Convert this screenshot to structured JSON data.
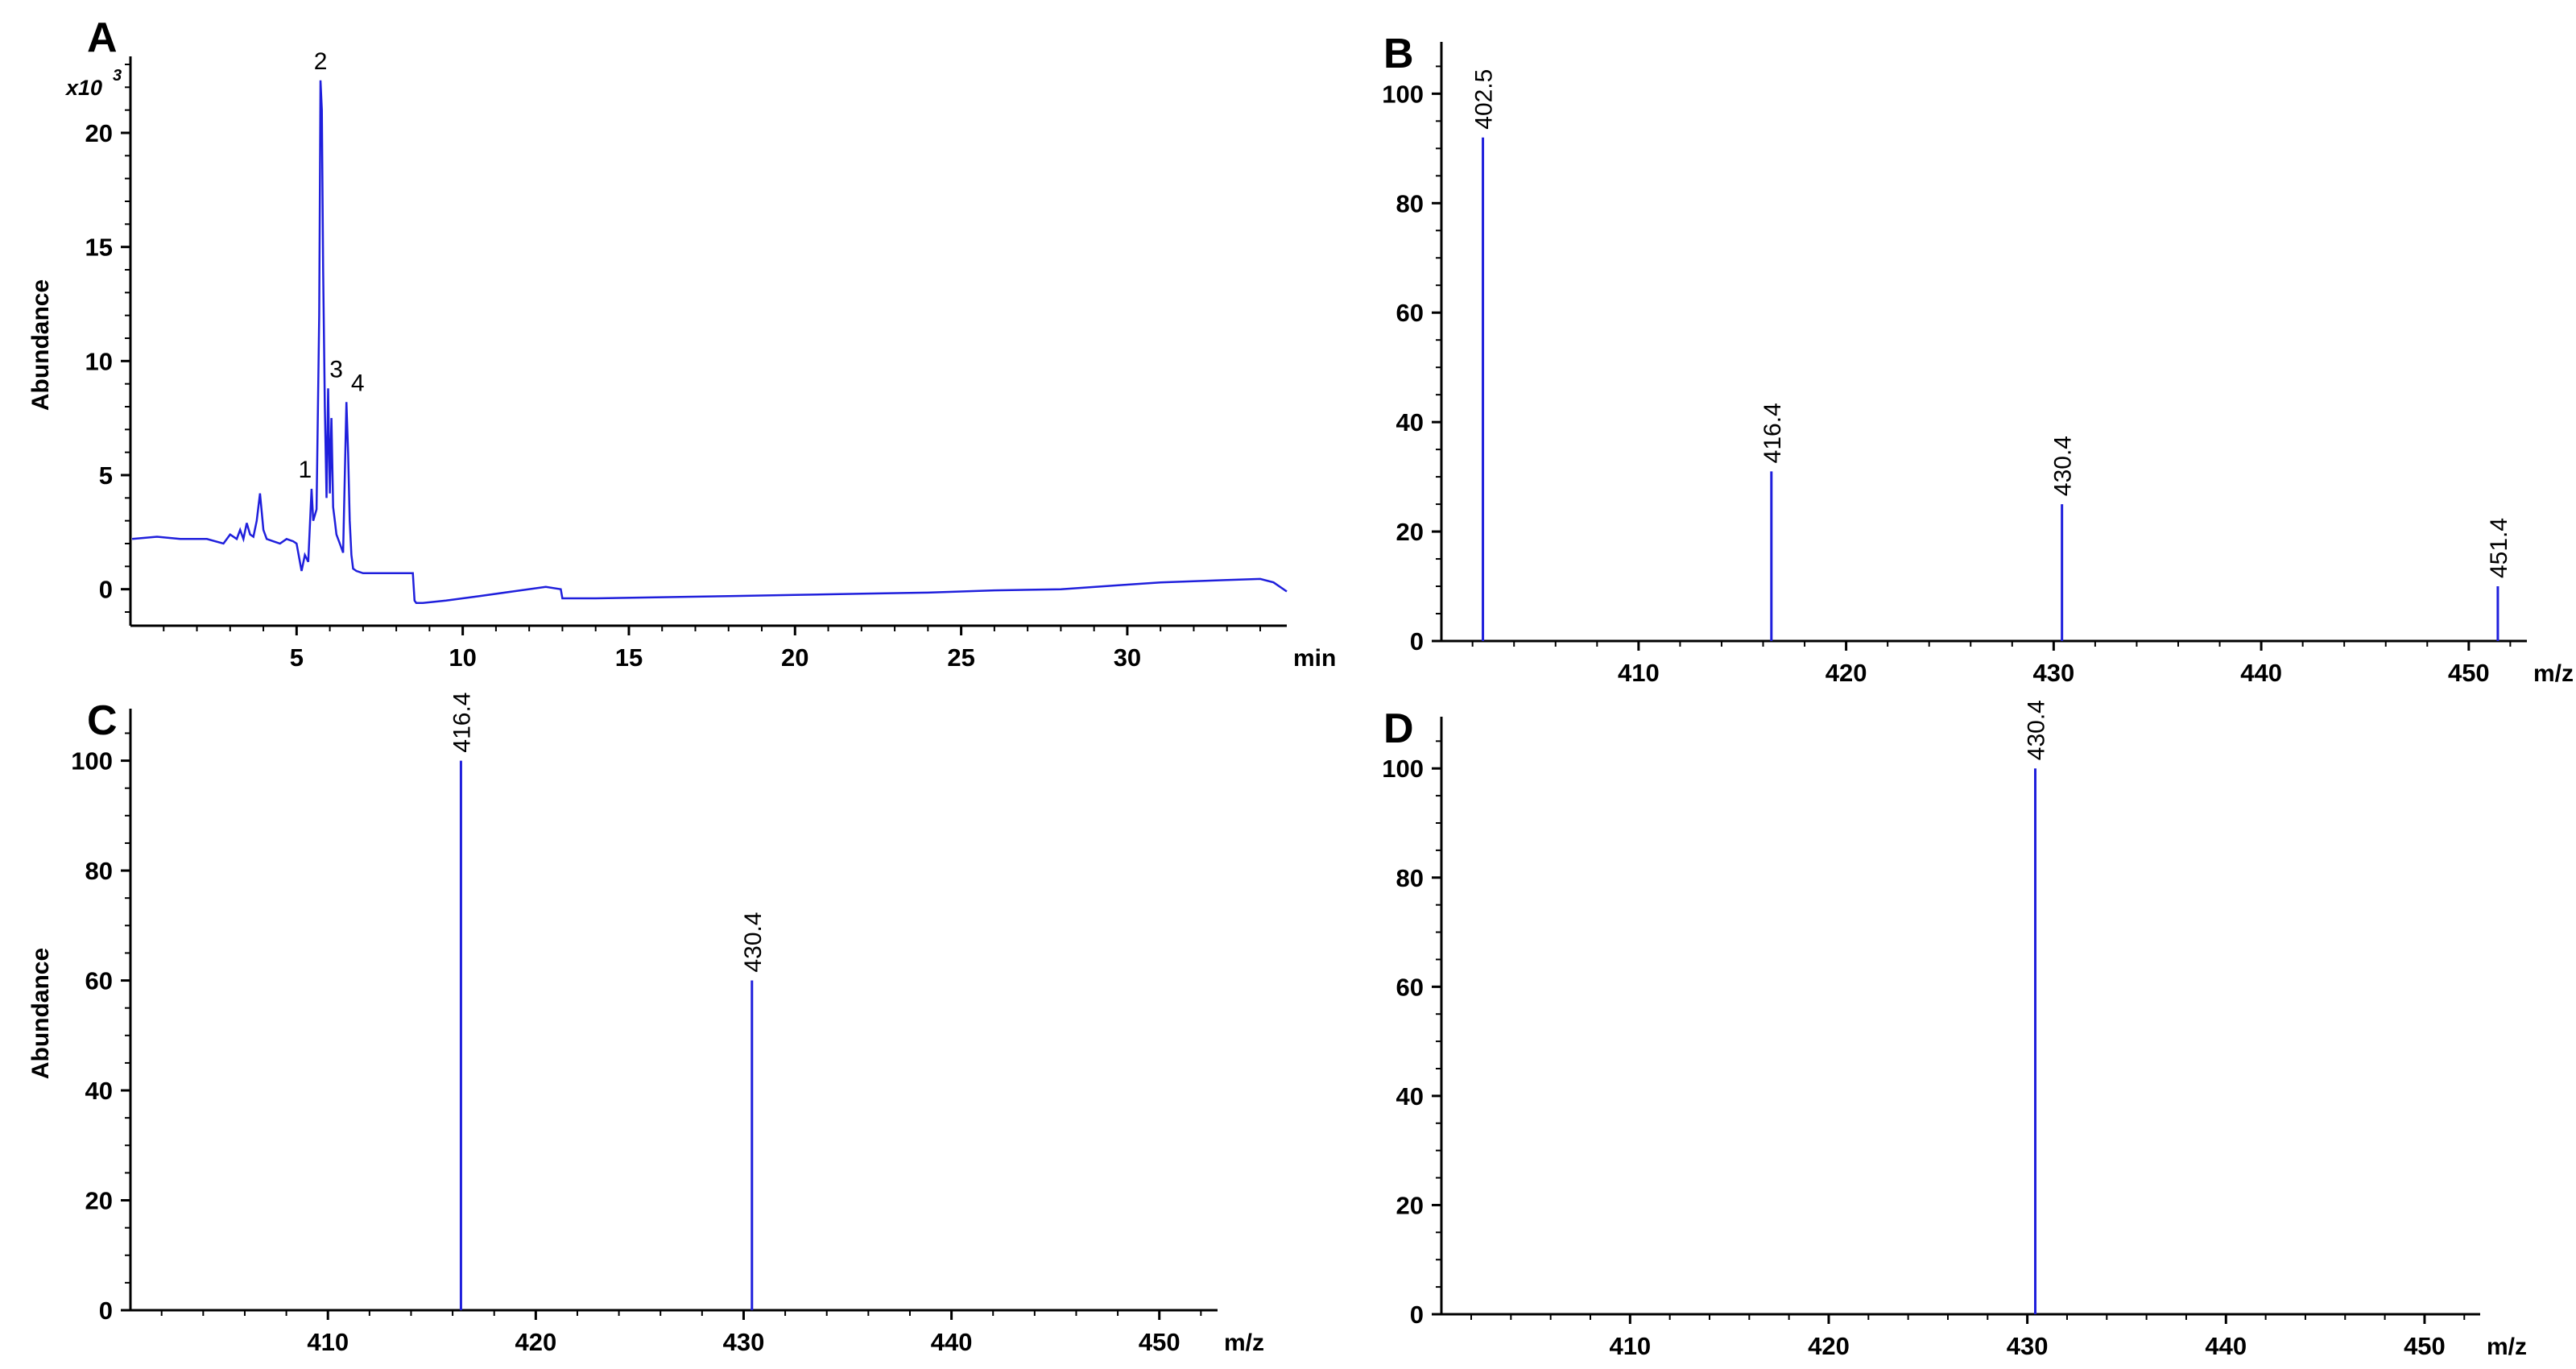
{
  "colors": {
    "trace": "#1f1fdc",
    "axis": "#000000",
    "background": "#ffffff"
  },
  "chart_data": [
    {
      "panel": "A",
      "type": "line",
      "title": "",
      "xlabel": "min",
      "ylabel": "Abundance",
      "y_multiplier_label": "x10",
      "y_multiplier_exponent": "3",
      "xlim": [
        0,
        34.8
      ],
      "ylim": [
        -1.6,
        23
      ],
      "xticks": [
        5,
        10,
        15,
        20,
        25,
        30
      ],
      "xtick_labels": [
        "5",
        "10",
        "15",
        "20",
        "25",
        "30"
      ],
      "yticks": [
        0,
        5,
        10,
        15,
        20
      ],
      "ytick_labels": [
        "0",
        "5",
        "10",
        "15",
        "20"
      ],
      "series": [
        {
          "x": [
            0.05,
            0.8,
            1.5,
            2.3,
            2.8,
            3.0,
            3.2,
            3.3,
            3.4,
            3.5,
            3.6,
            3.7,
            3.8,
            3.9,
            4.0,
            4.1,
            4.3,
            4.5,
            4.7,
            4.9,
            5.0,
            5.15,
            5.25,
            5.35,
            5.45,
            5.5,
            5.6,
            5.68,
            5.72,
            5.76,
            5.8,
            5.85,
            5.9,
            5.95,
            6.0,
            6.05,
            6.1,
            6.15,
            6.2,
            6.3,
            6.4,
            6.5,
            6.55,
            6.6,
            6.65,
            6.7,
            6.8,
            7.0,
            7.5,
            8.0,
            8.5,
            8.55,
            8.6,
            8.8,
            9.5,
            10.5,
            11.5,
            12.5,
            12.95,
            13.0,
            13.1,
            14.0,
            16.0,
            18.0,
            20.0,
            22.0,
            24.0,
            25.0,
            26.0,
            28.0,
            30.0,
            31.0,
            32.0,
            33.0,
            34.0,
            34.4,
            34.8
          ],
          "y": [
            2.2,
            2.3,
            2.2,
            2.2,
            2.0,
            2.4,
            2.2,
            2.6,
            2.2,
            2.9,
            2.4,
            2.3,
            3.0,
            4.2,
            2.6,
            2.2,
            2.1,
            2.0,
            2.2,
            2.1,
            2.0,
            0.8,
            1.5,
            1.2,
            4.4,
            3.0,
            3.5,
            12.0,
            22.3,
            21.0,
            14.0,
            8.0,
            4.0,
            8.8,
            4.2,
            7.5,
            3.6,
            3.0,
            2.4,
            2.0,
            1.6,
            8.2,
            6.0,
            3.0,
            1.5,
            0.9,
            0.8,
            0.7,
            0.7,
            0.7,
            0.7,
            -0.5,
            -0.6,
            -0.6,
            -0.5,
            -0.3,
            -0.1,
            0.1,
            0.0,
            -0.4,
            -0.4,
            -0.4,
            -0.35,
            -0.3,
            -0.25,
            -0.2,
            -0.15,
            -0.1,
            -0.05,
            0.0,
            0.2,
            0.3,
            0.35,
            0.4,
            0.45,
            0.3,
            -0.1
          ]
        }
      ],
      "peak_labels": [
        {
          "label": "1",
          "x": 5.4,
          "y": 4.4
        },
        {
          "label": "2",
          "x": 5.72,
          "y": 22.3
        },
        {
          "label": "3",
          "x": 6.05,
          "y": 8.8
        },
        {
          "label": "4",
          "x": 6.5,
          "y": 8.2
        }
      ]
    },
    {
      "panel": "B",
      "type": "bar",
      "title": "",
      "xlabel": "m/z",
      "ylabel": "",
      "xlim": [
        400.5,
        452.8
      ],
      "ylim": [
        0,
        108
      ],
      "xticks": [
        410,
        420,
        430,
        440,
        450
      ],
      "xtick_labels": [
        "410",
        "420",
        "430",
        "440",
        "450"
      ],
      "yticks": [
        0,
        20,
        40,
        60,
        80,
        100
      ],
      "ytick_labels": [
        "0",
        "20",
        "40",
        "60",
        "80",
        "100"
      ],
      "peaks": [
        {
          "mz": 402.5,
          "abundance": 92,
          "label": "402.5"
        },
        {
          "mz": 416.4,
          "abundance": 31,
          "label": "416.4"
        },
        {
          "mz": 430.4,
          "abundance": 25,
          "label": "430.4"
        },
        {
          "mz": 451.4,
          "abundance": 10,
          "label": "451.4"
        }
      ]
    },
    {
      "panel": "C",
      "type": "bar",
      "title": "",
      "xlabel": "m/z",
      "ylabel": "Abundance",
      "xlim": [
        400.5,
        452.8
      ],
      "ylim": [
        0,
        108
      ],
      "xticks": [
        410,
        420,
        430,
        440,
        450
      ],
      "xtick_labels": [
        "410",
        "420",
        "430",
        "440",
        "450"
      ],
      "yticks": [
        0,
        20,
        40,
        60,
        80,
        100
      ],
      "ytick_labels": [
        "0",
        "20",
        "40",
        "60",
        "80",
        "100"
      ],
      "peaks": [
        {
          "mz": 416.4,
          "abundance": 100,
          "label": "416.4"
        },
        {
          "mz": 430.4,
          "abundance": 60,
          "label": "430.4"
        }
      ]
    },
    {
      "panel": "D",
      "type": "bar",
      "title": "",
      "xlabel": "m/z",
      "ylabel": "",
      "xlim": [
        400.5,
        452.8
      ],
      "ylim": [
        0,
        108
      ],
      "xticks": [
        410,
        420,
        430,
        440,
        450
      ],
      "xtick_labels": [
        "410",
        "420",
        "430",
        "440",
        "450"
      ],
      "yticks": [
        0,
        20,
        40,
        60,
        80,
        100
      ],
      "ytick_labels": [
        "0",
        "20",
        "40",
        "60",
        "80",
        "100"
      ],
      "peaks": [
        {
          "mz": 430.4,
          "abundance": 100,
          "label": "430.4"
        }
      ]
    }
  ]
}
